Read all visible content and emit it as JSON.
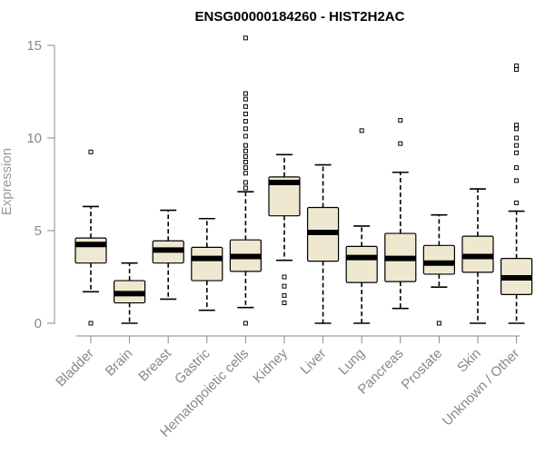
{
  "chart_data": {
    "type": "boxplot",
    "title": "ENSG00000184260 - HIST2H2AC",
    "xlabel": "",
    "ylabel": "Expression",
    "ylim": [
      0,
      15.5
    ],
    "yticks": [
      0,
      5,
      10,
      15
    ],
    "box_color": "#efe8d0",
    "categories": [
      "Bladder",
      "Brain",
      "Breast",
      "Gastric",
      "Hematopoietic cells",
      "Kidney",
      "Liver",
      "Lung",
      "Pancreas",
      "Prostate",
      "Skin",
      "Unknown / Other"
    ],
    "boxes": [
      {
        "min": 1.7,
        "q1": 3.25,
        "median": 4.25,
        "q3": 4.6,
        "max": 6.3,
        "outliers": [
          0.0,
          9.25
        ]
      },
      {
        "min": 0.0,
        "q1": 1.1,
        "median": 1.6,
        "q3": 2.3,
        "max": 3.25,
        "outliers": []
      },
      {
        "min": 1.3,
        "q1": 3.25,
        "median": 3.95,
        "q3": 4.45,
        "max": 6.1,
        "outliers": []
      },
      {
        "min": 0.7,
        "q1": 2.3,
        "median": 3.5,
        "q3": 4.1,
        "max": 5.65,
        "outliers": []
      },
      {
        "min": 0.85,
        "q1": 2.8,
        "median": 3.6,
        "q3": 4.5,
        "max": 7.1,
        "outliers": [
          0.0,
          7.3,
          7.6,
          8.1,
          8.4,
          8.7,
          9.0,
          9.3,
          9.6,
          10.1,
          10.5,
          10.9,
          11.3,
          11.7,
          12.1,
          12.4,
          15.4
        ]
      },
      {
        "min": 3.4,
        "q1": 5.8,
        "median": 7.6,
        "q3": 7.9,
        "max": 9.1,
        "outliers": [
          1.1,
          1.5,
          2.0,
          2.5
        ]
      },
      {
        "min": 0.0,
        "q1": 3.35,
        "median": 4.9,
        "q3": 6.25,
        "max": 8.55,
        "outliers": []
      },
      {
        "min": 0.0,
        "q1": 2.2,
        "median": 3.55,
        "q3": 4.15,
        "max": 5.25,
        "outliers": [
          10.4
        ]
      },
      {
        "min": 0.8,
        "q1": 2.25,
        "median": 3.5,
        "q3": 4.85,
        "max": 8.15,
        "outliers": [
          9.7,
          10.95
        ]
      },
      {
        "min": 1.95,
        "q1": 2.65,
        "median": 3.25,
        "q3": 4.2,
        "max": 5.85,
        "outliers": [
          0.0
        ]
      },
      {
        "min": 0.0,
        "q1": 2.75,
        "median": 3.6,
        "q3": 4.7,
        "max": 7.25,
        "outliers": []
      },
      {
        "min": 0.0,
        "q1": 1.55,
        "median": 2.45,
        "q3": 3.5,
        "max": 6.05,
        "outliers": [
          6.5,
          7.7,
          8.4,
          9.2,
          9.6,
          10.0,
          10.5,
          10.7,
          13.7,
          13.9
        ]
      }
    ]
  }
}
